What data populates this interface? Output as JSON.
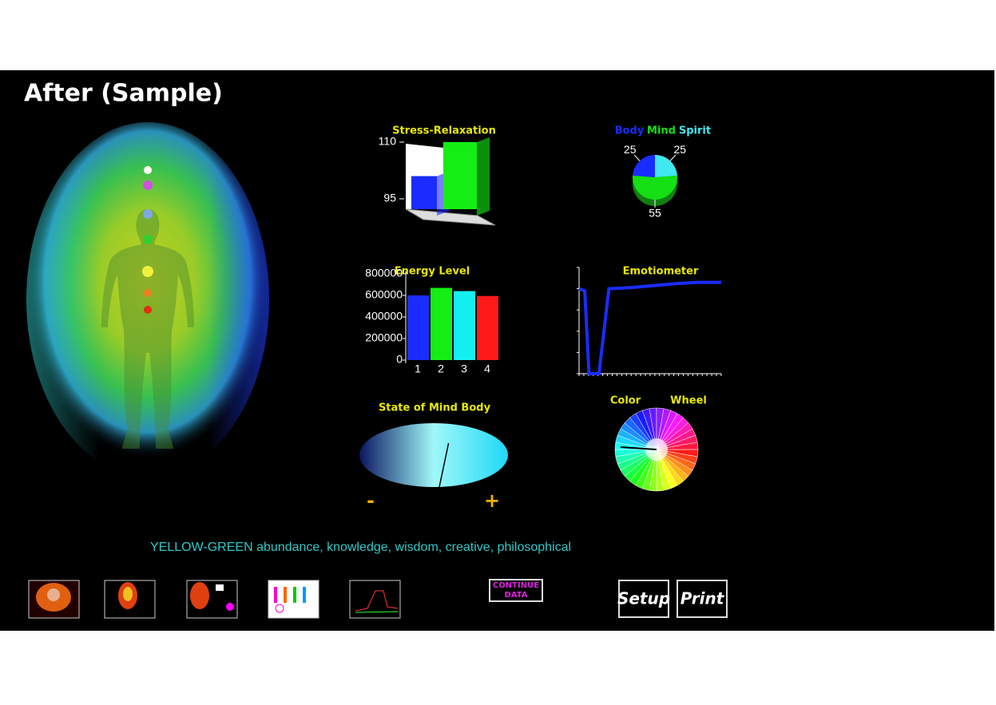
{
  "title": "After (Sample)",
  "chart_data": [
    {
      "type": "bar3d",
      "title": "Stress-Relaxation",
      "categories": [
        null,
        null
      ],
      "values": [
        101,
        110
      ],
      "colors": [
        "#1a2cff",
        "#14ee14"
      ],
      "ylim": [
        95,
        110
      ],
      "yticks": [
        95,
        110
      ]
    },
    {
      "type": "pie",
      "categories": [
        "Body",
        "Mind",
        "Spirit"
      ],
      "values": [
        25,
        55,
        25
      ],
      "colors": [
        "#1a2cff",
        "#14e014",
        "#40e8f0"
      ]
    },
    {
      "type": "bar",
      "title": "Energy Level",
      "categories": [
        "1",
        "2",
        "3",
        "4"
      ],
      "values": [
        600000,
        670000,
        640000,
        595000
      ],
      "colors": [
        "#1a2cff",
        "#14ee14",
        "#14f0f0",
        "#ff1a1a"
      ],
      "ylim": [
        0,
        800000
      ],
      "yticks": [
        0,
        200000,
        400000,
        600000,
        800000
      ]
    },
    {
      "type": "line",
      "title": "Emotiometer",
      "x": [
        0,
        4,
        7,
        14,
        21,
        36,
        53,
        70,
        84,
        100
      ],
      "values": [
        80,
        78,
        0,
        0,
        80,
        81,
        83,
        85,
        86,
        86
      ],
      "color": "#1a2cff",
      "xlim": [
        0,
        100
      ],
      "ylim": [
        0,
        100
      ]
    },
    {
      "type": "gauge",
      "title": "State of Mind Body",
      "value": 0.2,
      "xlim": [
        -1,
        1
      ],
      "min_label": "-",
      "max_label": "+"
    },
    {
      "type": "wheel",
      "title_words": [
        "Color",
        "Wheel"
      ]
    }
  ],
  "caption": "YELLOW-GREEN abundance, knowledge, wisdom, creative, philosophical",
  "buttons": {
    "continue": [
      "CONTINUE",
      "DATA"
    ],
    "setup": "Setup",
    "print": "Print"
  }
}
